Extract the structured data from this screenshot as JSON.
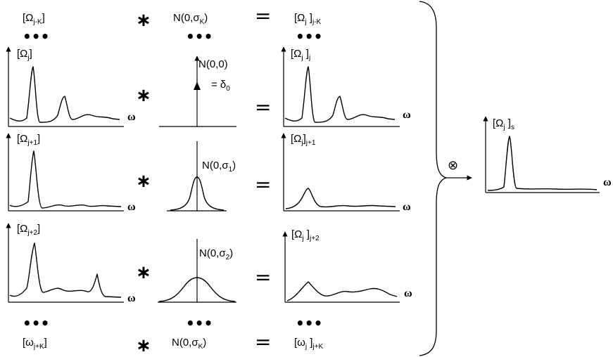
{
  "rows": [
    {
      "left": {
        "base": "[Ω",
        "sub": "j-K",
        "suffix": "]"
      },
      "kernel": {
        "base": "N(0,σ",
        "sub": "K",
        "suffix": ")"
      },
      "right": {
        "base": "[Ω",
        "sub": "j",
        "mid": " ]",
        "sub2": "j-K"
      }
    },
    {
      "left": {
        "base": "[Ω",
        "sub": "j",
        "suffix": "]"
      },
      "kernel": {
        "label": "N(0,0)",
        "note": "= δ",
        "note_sub": "0"
      },
      "right": {
        "base": "[Ω",
        "sub": "j",
        "mid": " ]",
        "sub2": "j"
      }
    },
    {
      "left": {
        "base": "[Ω",
        "sub": "j+1",
        "suffix": "]"
      },
      "kernel": {
        "base": "N(0,σ",
        "sub": "1",
        "suffix": ")"
      },
      "right": {
        "base": "[Ω",
        "sub": "j",
        "mid": "]",
        "sub2": "j+1"
      }
    },
    {
      "left": {
        "base": "[Ω",
        "sub": "j+2",
        "suffix": "]"
      },
      "kernel": {
        "base": "N(0,σ",
        "sub": "2",
        "suffix": ")"
      },
      "right": {
        "base": "[Ω",
        "sub": "j",
        "mid": " ]",
        "sub2": "j+2"
      }
    },
    {
      "left": {
        "base": "[ω",
        "sub": "j+K",
        "suffix": "]"
      },
      "kernel": {
        "base": "N(0,σ",
        "sub": "K",
        "suffix": ")"
      },
      "right": {
        "base": "[ω",
        "sub": "j",
        "mid": " ]",
        "sub2": "j+K"
      }
    }
  ],
  "symbols": {
    "convolve": "∗",
    "equals": "=",
    "ellipsis": "•••",
    "omega": "ω",
    "combine": "⊗"
  },
  "result": {
    "base": "[Ω",
    "sub": "j",
    "mid": " ]",
    "sub2": "s"
  }
}
